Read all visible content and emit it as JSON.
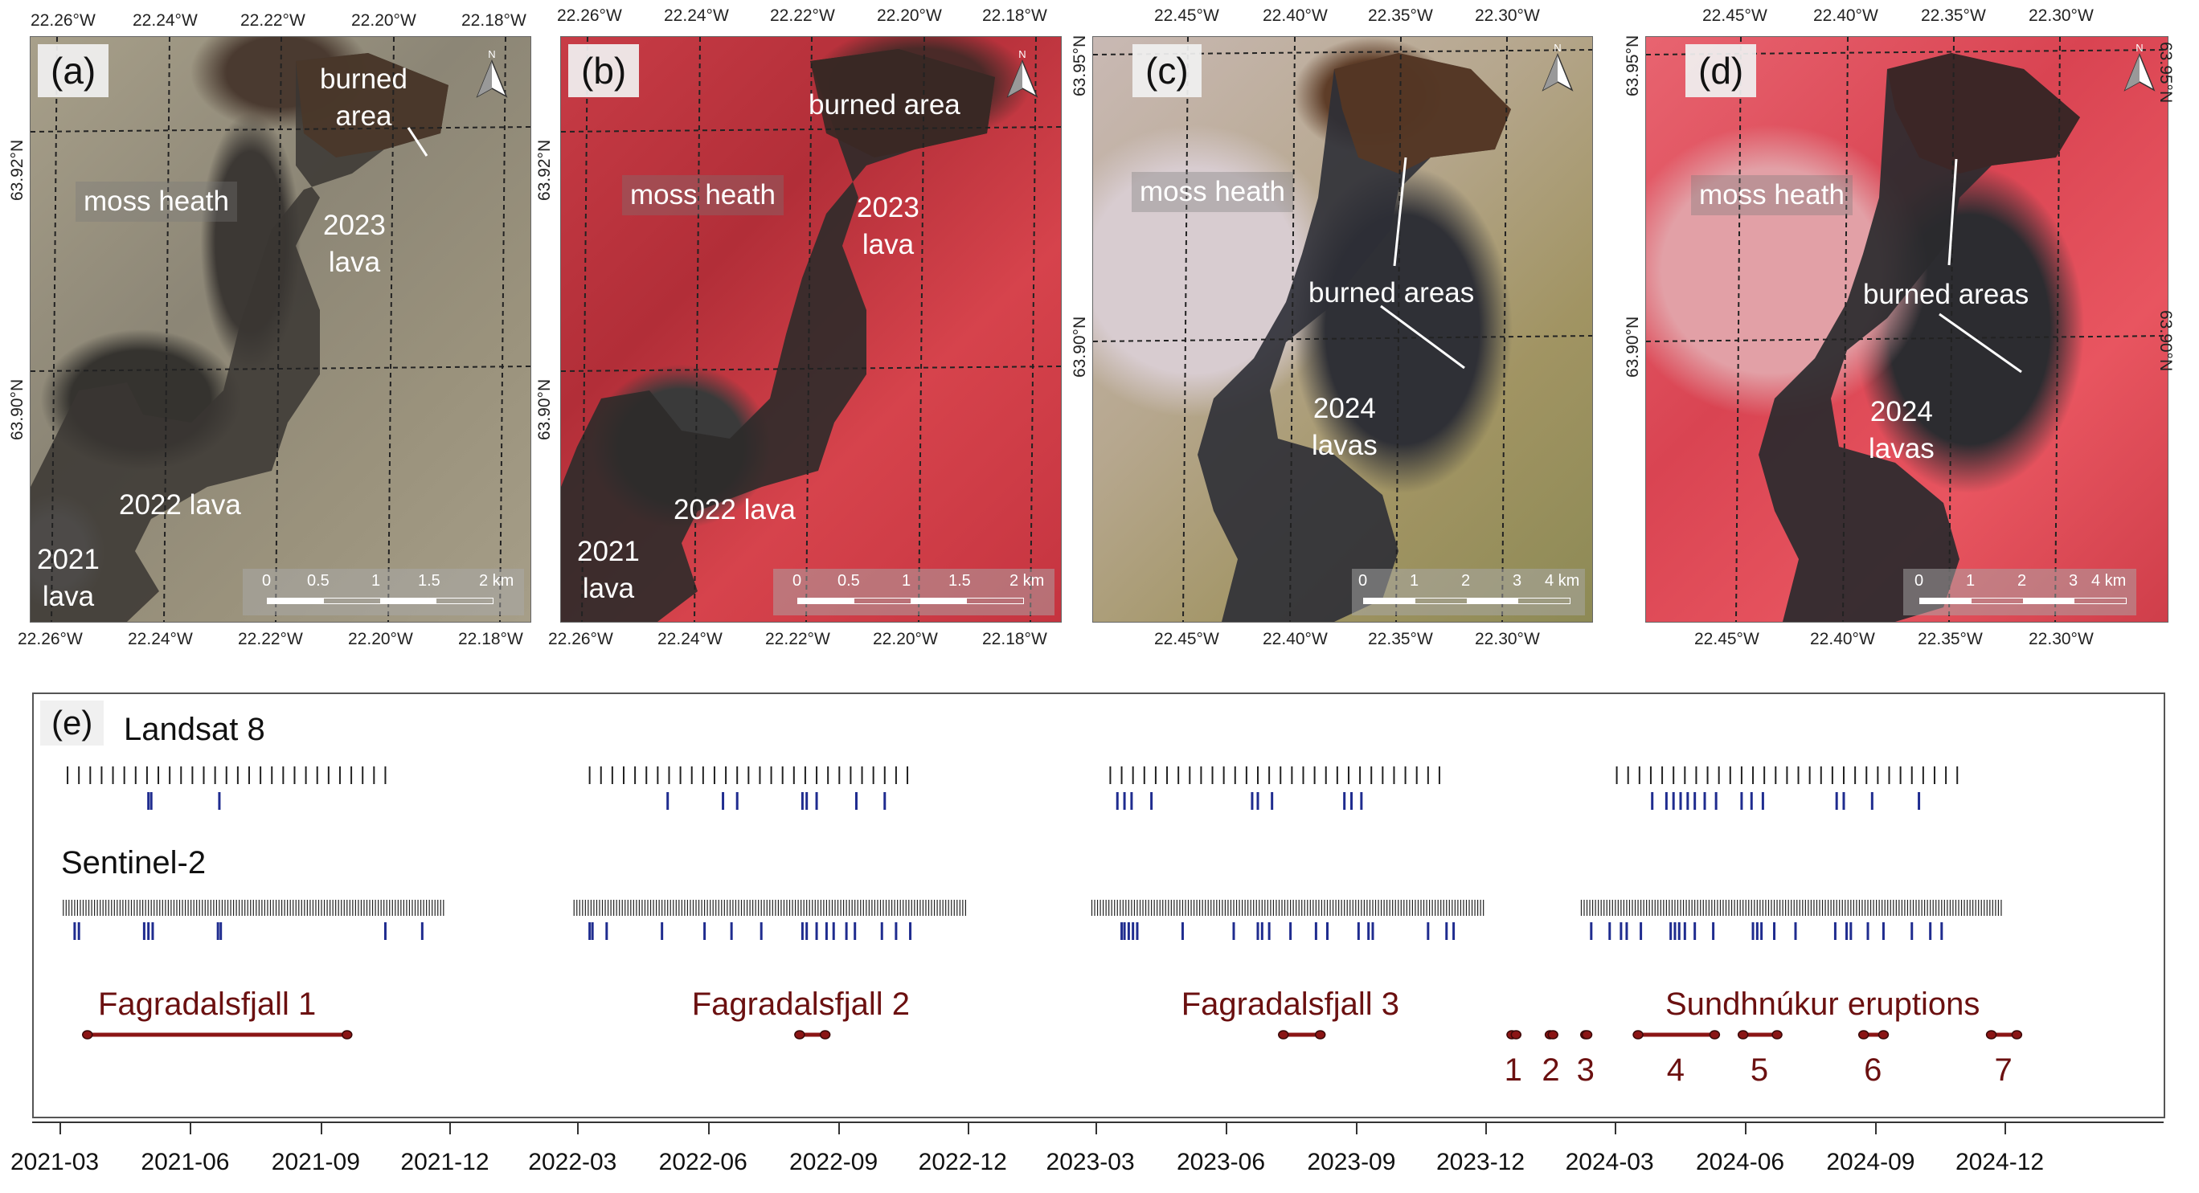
{
  "panels": {
    "a": {
      "label": "(a)",
      "top_ticks": [
        "22.26°W",
        "22.24°W",
        "22.22°W",
        "22.20°W",
        "22.18°W"
      ],
      "bottom_ticks": [
        "22.26°W",
        "22.24°W",
        "22.22°W",
        "22.20°W",
        "22.18°W"
      ],
      "left_ticks": [
        "63.92°N",
        "63.90°N"
      ],
      "labels": {
        "burned": "burned\narea",
        "moss": "moss heath",
        "lava2023": "2023\nlava",
        "lava2022": "2022 lava",
        "lava2021": "2021\nlava"
      },
      "scale": {
        "ticks": [
          "0",
          "0.5",
          "1",
          "1.5",
          "2 km"
        ]
      }
    },
    "b": {
      "label": "(b)",
      "top_ticks": [
        "22.26°W",
        "22.24°W",
        "22.22°W",
        "22.20°W",
        "22.18°W"
      ],
      "bottom_ticks": [
        "22.26°W",
        "22.24°W",
        "22.22°W",
        "22.20°W",
        "22.18°W"
      ],
      "left_ticks": [
        "63.92°N",
        "63.90°N"
      ],
      "labels": {
        "burned": "burned area",
        "moss": "moss heath",
        "lava2023": "2023\nlava",
        "lava2022": "2022 lava",
        "lava2021": "2021\nlava"
      },
      "scale": {
        "ticks": [
          "0",
          "0.5",
          "1",
          "1.5",
          "2 km"
        ]
      }
    },
    "c": {
      "label": "(c)",
      "top_ticks": [
        "22.45°W",
        "22.40°W",
        "22.35°W",
        "22.30°W"
      ],
      "bottom_ticks": [
        "22.45°W",
        "22.40°W",
        "22.35°W",
        "22.30°W"
      ],
      "left_ticks": [
        "63.95°N",
        "63.90°N"
      ],
      "labels": {
        "moss": "moss heath",
        "burned": "burned areas",
        "lava2024": "2024\nlavas"
      },
      "scale": {
        "ticks": [
          "0",
          "1",
          "2",
          "3",
          "4 km"
        ]
      }
    },
    "d": {
      "label": "(d)",
      "top_ticks": [
        "22.45°W",
        "22.40°W",
        "22.35°W",
        "22.30°W"
      ],
      "bottom_ticks": [
        "22.45°W",
        "22.40°W",
        "22.35°W",
        "22.30°W"
      ],
      "left_ticks": [
        "63.95°N",
        "63.90°N"
      ],
      "right_ticks": [
        "63.95°N",
        "63.90°N"
      ],
      "labels": {
        "moss": "moss heath",
        "burned": "burned areas",
        "lava2024": "2024\nlavas"
      },
      "scale": {
        "ticks": [
          "0",
          "1",
          "2",
          "3",
          "4 km"
        ]
      }
    }
  },
  "north_arrow": "N",
  "timeline": {
    "label": "(e)",
    "landsat_label": "Landsat 8",
    "sentinel_label": "Sentinel-2",
    "eruptions": [
      {
        "name": "Fagradalsfjall 1",
        "start": "2021-03-19",
        "end": "2021-09-18"
      },
      {
        "name": "Fagradalsfjall 2",
        "start": "2022-08-03",
        "end": "2022-08-21"
      },
      {
        "name": "Fagradalsfjall 3",
        "start": "2023-07-10",
        "end": "2023-08-05"
      }
    ],
    "sundhnukur": {
      "name": "Sundhnúkur eruptions",
      "events": [
        {
          "num": "1",
          "start": "2023-12-18",
          "end": "2023-12-21"
        },
        {
          "num": "2",
          "start": "2024-01-14",
          "end": "2024-01-16"
        },
        {
          "num": "3",
          "start": "2024-02-08",
          "end": "2024-02-09"
        },
        {
          "num": "4",
          "start": "2024-03-16",
          "end": "2024-05-09"
        },
        {
          "num": "5",
          "start": "2024-05-29",
          "end": "2024-06-22"
        },
        {
          "num": "6",
          "start": "2024-08-22",
          "end": "2024-09-05"
        },
        {
          "num": "7",
          "start": "2024-11-20",
          "end": "2024-12-08"
        }
      ]
    },
    "axis_ticks": [
      "2021-03",
      "2021-06",
      "2021-09",
      "2021-12",
      "2022-03",
      "2022-06",
      "2022-09",
      "2022-12",
      "2023-03",
      "2023-06",
      "2023-09",
      "2023-12",
      "2024-03",
      "2024-06",
      "2024-09",
      "2024-12"
    ],
    "landsat_seasons": [
      {
        "start": "2021-03-05",
        "end": "2021-10-20",
        "step": 8
      },
      {
        "start": "2022-03-08",
        "end": "2022-10-25",
        "step": 8
      },
      {
        "start": "2023-03-10",
        "end": "2023-10-28",
        "step": 8
      },
      {
        "start": "2024-03-01",
        "end": "2024-10-30",
        "step": 8
      }
    ],
    "sentinel_seasons": [
      {
        "start": "2021-03-02",
        "end": "2021-11-25",
        "step": 2
      },
      {
        "start": "2022-02-25",
        "end": "2022-11-28",
        "step": 2
      },
      {
        "start": "2023-02-25",
        "end": "2023-11-28",
        "step": 2
      },
      {
        "start": "2024-02-05",
        "end": "2024-11-28",
        "step": 2
      }
    ],
    "landsat_clear": [
      "2021-05-01",
      "2021-05-03",
      "2021-06-20",
      "2022-05-02",
      "2022-06-10",
      "2022-06-20",
      "2022-08-05",
      "2022-08-08",
      "2022-08-15",
      "2022-09-12",
      "2022-10-02",
      "2023-03-15",
      "2023-03-20",
      "2023-03-25",
      "2023-04-08",
      "2023-06-18",
      "2023-06-22",
      "2023-07-02",
      "2023-08-22",
      "2023-08-27",
      "2023-09-03",
      "2024-03-26",
      "2024-04-05",
      "2024-04-10",
      "2024-04-15",
      "2024-04-20",
      "2024-04-25",
      "2024-05-02",
      "2024-05-10",
      "2024-05-28",
      "2024-06-04",
      "2024-06-12",
      "2024-08-03",
      "2024-08-08",
      "2024-08-28",
      "2024-09-30"
    ],
    "sentinel_clear": [
      "2021-03-10",
      "2021-03-13",
      "2021-04-28",
      "2021-05-01",
      "2021-05-04",
      "2021-06-19",
      "2021-06-21",
      "2021-10-15",
      "2021-11-10",
      "2022-03-08",
      "2022-03-10",
      "2022-03-20",
      "2022-04-28",
      "2022-05-28",
      "2022-06-16",
      "2022-07-07",
      "2022-08-05",
      "2022-08-08",
      "2022-08-15",
      "2022-08-22",
      "2022-08-27",
      "2022-09-05",
      "2022-09-11",
      "2022-09-30",
      "2022-10-10",
      "2022-10-20",
      "2023-03-18",
      "2023-03-20",
      "2023-03-23",
      "2023-03-26",
      "2023-03-29",
      "2023-04-30",
      "2023-06-05",
      "2023-06-22",
      "2023-06-25",
      "2023-06-30",
      "2023-07-15",
      "2023-08-02",
      "2023-08-10",
      "2023-09-01",
      "2023-09-08",
      "2023-09-11",
      "2023-10-20",
      "2023-11-02",
      "2023-11-07",
      "2024-02-12",
      "2024-02-25",
      "2024-03-04",
      "2024-03-08",
      "2024-03-18",
      "2024-04-08",
      "2024-04-11",
      "2024-04-14",
      "2024-04-18",
      "2024-04-25",
      "2024-05-08",
      "2024-06-05",
      "2024-06-08",
      "2024-06-11",
      "2024-06-20",
      "2024-07-05",
      "2024-08-02",
      "2024-08-10",
      "2024-08-13",
      "2024-08-25",
      "2024-09-05",
      "2024-09-25",
      "2024-10-08",
      "2024-10-16"
    ]
  },
  "colors": {
    "landsat_tick": "#222222",
    "clear_tick": "#1f2c8f",
    "eruption": "#8b1515",
    "eruption_text": "#6b1010"
  }
}
